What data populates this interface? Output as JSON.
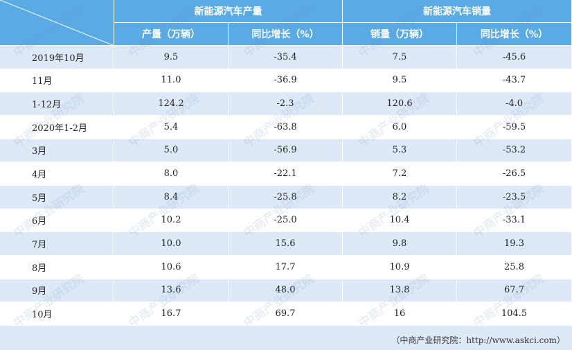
{
  "table": {
    "groups": [
      "新能源汽车产量",
      "新能源汽车销量"
    ],
    "columns": [
      "产量（万辆）",
      "同比增长（%）",
      "销量（万辆）",
      "同比增长（%）"
    ],
    "rows": [
      [
        "2019年10月",
        "9.5",
        "-35.4",
        "7.5",
        "-45.6"
      ],
      [
        "11月",
        "11.0",
        "-36.9",
        "9.5",
        "-43.7"
      ],
      [
        "1-12月",
        "124.2",
        "-2.3",
        "120.6",
        "-4.0"
      ],
      [
        "2020年1-2月",
        "5.4",
        "-63.8",
        "6.0",
        "-59.5"
      ],
      [
        "3月",
        "5.0",
        "-56.9",
        "5.3",
        "-53.2"
      ],
      [
        "4月",
        "8.0",
        "-22.1",
        "7.2",
        "-26.5"
      ],
      [
        "5月",
        "8.4",
        "-25.8",
        "8.2",
        "-23.5"
      ],
      [
        "6月",
        "10.2",
        "-25.0",
        "10.4",
        "-33.1"
      ],
      [
        "7月",
        "10.0",
        "15.6",
        "9.8",
        "19.3"
      ],
      [
        "8月",
        "10.6",
        "17.7",
        "10.9",
        "25.8"
      ],
      [
        "9月",
        "13.6",
        "48.0",
        "13.8",
        "67.7"
      ],
      [
        "10月",
        "16.7",
        "69.7",
        "16",
        "104.5"
      ]
    ]
  },
  "footer": {
    "source": "（中商产业研究院：http://www.askci.com）"
  },
  "watermark": "中商产业研究院"
}
